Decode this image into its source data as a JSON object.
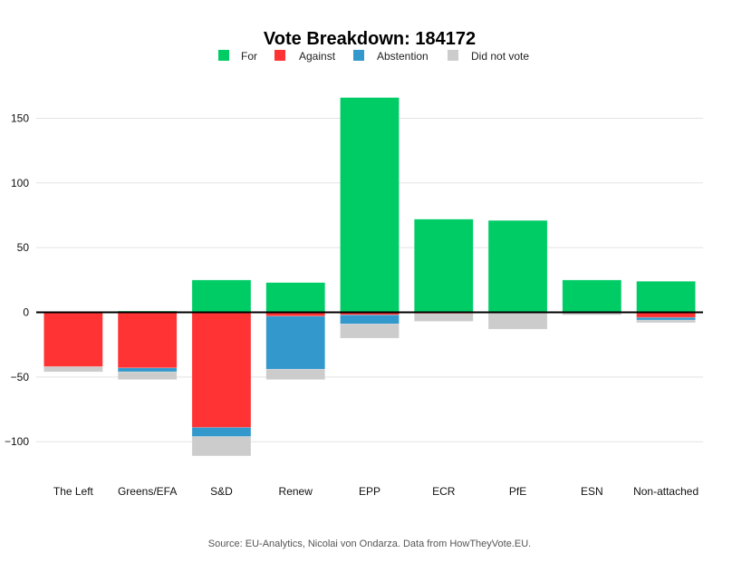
{
  "chart_data": {
    "type": "bar",
    "stacked": true,
    "title": "Vote Breakdown: 184172",
    "xlabel": "",
    "ylabel": "",
    "ylim": [
      -120,
      175
    ],
    "yticks": [
      -100,
      -50,
      0,
      50,
      100,
      150
    ],
    "ytick_labels": [
      "−100",
      "−50",
      "0",
      "50",
      "100",
      "150"
    ],
    "grid": true,
    "legend_position": "top-center",
    "categories": [
      "The Left",
      "Greens/EFA",
      "S&D",
      "Renew",
      "EPP",
      "ECR",
      "PfE",
      "ESN",
      "Non-attached"
    ],
    "series": [
      {
        "name": "For",
        "color": "#00CC66",
        "direction": "positive",
        "values": [
          0,
          1,
          25,
          23,
          166,
          72,
          71,
          25,
          24
        ]
      },
      {
        "name": "Against",
        "color": "#FF3333",
        "direction": "negative",
        "values": [
          42,
          43,
          89,
          3,
          2,
          1,
          0,
          0,
          4
        ]
      },
      {
        "name": "Abstention",
        "color": "#3399CC",
        "direction": "negative",
        "values": [
          0,
          3,
          7,
          41,
          7,
          0,
          0,
          0,
          2
        ]
      },
      {
        "name": "Did not vote",
        "color": "#CCCCCC",
        "direction": "negative",
        "values": [
          4,
          6,
          15,
          8,
          11,
          6,
          13,
          2,
          2
        ]
      }
    ],
    "source": "Source: EU-Analytics, Nicolai von Ondarza. Data from HowTheyVote.EU."
  }
}
